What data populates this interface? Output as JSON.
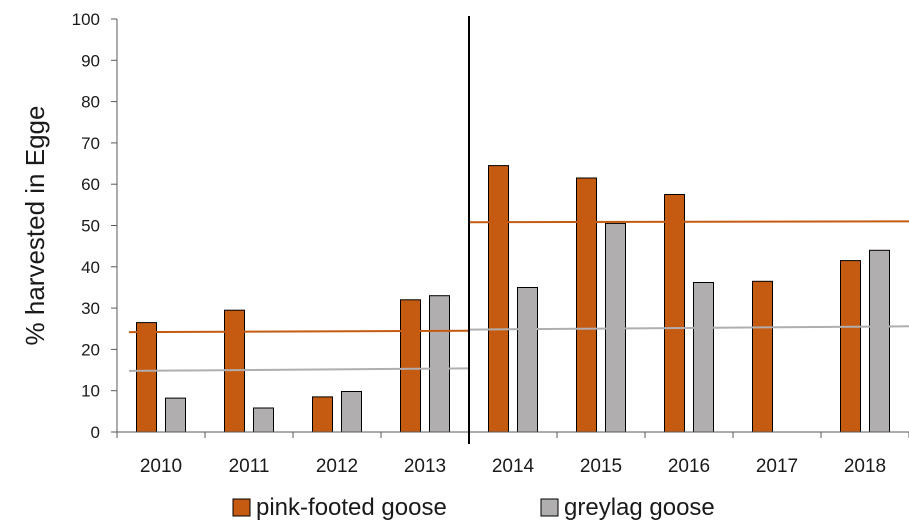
{
  "chart_data": {
    "type": "bar",
    "title": "",
    "xlabel": "",
    "ylabel": "% harvested in Egge",
    "ylim": [
      0,
      100
    ],
    "yticks": [
      0,
      10,
      20,
      30,
      40,
      50,
      60,
      70,
      80,
      90,
      100
    ],
    "grid": false,
    "legend_position": "bottom",
    "categories": [
      "2010",
      "2011",
      "2012",
      "2013",
      "2014",
      "2015",
      "2016",
      "2017",
      "2018"
    ],
    "series": [
      {
        "name": "pink-footed goose",
        "color": "#c55a11",
        "values": [
          26.5,
          29.5,
          8.5,
          32,
          64.5,
          61.5,
          57.5,
          36.5,
          41.5
        ]
      },
      {
        "name": "greylag goose",
        "color": "#b0aeae",
        "values": [
          8.2,
          5.8,
          9.8,
          33,
          35,
          50.5,
          36.2,
          null,
          44
        ]
      }
    ],
    "period_divider_after_category": "2013",
    "mean_lines": [
      {
        "series": "pink-footed goose",
        "color": "#c55a11",
        "from": "2010",
        "to": "2013",
        "y_start": 24.2,
        "y_end": 24.5
      },
      {
        "series": "pink-footed goose",
        "color": "#c55a11",
        "from": "2014",
        "to": "2018",
        "y_start": 50.8,
        "y_end": 51
      },
      {
        "series": "greylag goose",
        "color": "#b0aeae",
        "from": "2010",
        "to": "2013",
        "y_start": 14.8,
        "y_end": 15.4
      },
      {
        "series": "greylag goose",
        "color": "#b0aeae",
        "from": "2014",
        "to": "2018",
        "y_start": 24.8,
        "y_end": 25.6
      }
    ]
  }
}
